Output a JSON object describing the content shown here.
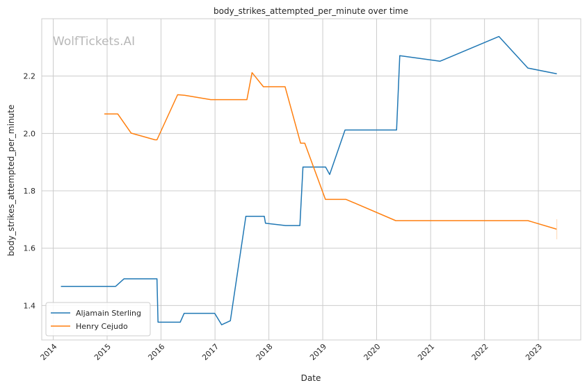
{
  "watermark": "WolfTickets.AI",
  "chart_data": {
    "type": "line",
    "title": "body_strikes_attempted_per_minute over time",
    "xlabel": "Date",
    "ylabel": "body_strikes_attempted_per_minute",
    "xlim": [
      "2013-10-15",
      "2023-10-15"
    ],
    "ylim": [
      1.28,
      2.4
    ],
    "x_ticks": [
      "2014",
      "2015",
      "2016",
      "2017",
      "2018",
      "2019",
      "2020",
      "2021",
      "2022",
      "2023"
    ],
    "y_ticks": [
      1.4,
      1.6,
      1.8,
      2.0,
      2.2
    ],
    "y_tick_labels": [
      "1.4",
      "1.6",
      "1.8",
      "2.0",
      "2.2"
    ],
    "grid": true,
    "legend_position": "lower-left",
    "series": [
      {
        "name": "Aljamain Sterling",
        "color": "#1f77b4",
        "points": [
          [
            "2014-02-22",
            1.467
          ],
          [
            "2015-02-28",
            1.467
          ],
          [
            "2015-04-25",
            1.493
          ],
          [
            "2015-12-05",
            1.493
          ],
          [
            "2015-12-12",
            1.342
          ],
          [
            "2016-05-10",
            1.342
          ],
          [
            "2016-06-06",
            1.373
          ],
          [
            "2016-12-30",
            1.373
          ],
          [
            "2017-02-15",
            1.333
          ],
          [
            "2017-04-15",
            1.347
          ],
          [
            "2017-07-29",
            1.711
          ],
          [
            "2017-12-01",
            1.711
          ],
          [
            "2017-12-09",
            1.687
          ],
          [
            "2018-04-25",
            1.679
          ],
          [
            "2018-07-30",
            1.679
          ],
          [
            "2018-08-20",
            1.883
          ],
          [
            "2019-01-20",
            1.883
          ],
          [
            "2019-02-17",
            1.857
          ],
          [
            "2019-06-01",
            2.012
          ],
          [
            "2020-05-15",
            2.012
          ],
          [
            "2020-06-06",
            2.271
          ],
          [
            "2021-03-06",
            2.252
          ],
          [
            "2022-04-09",
            2.338
          ],
          [
            "2022-10-22",
            2.228
          ],
          [
            "2023-05-06",
            2.208
          ]
        ]
      },
      {
        "name": "Henry Cejudo",
        "color": "#ff7f0e",
        "points": [
          [
            "2014-12-13",
            2.068
          ],
          [
            "2015-03-14",
            2.068
          ],
          [
            "2015-06-13",
            2.001
          ],
          [
            "2015-11-21",
            1.978
          ],
          [
            "2015-12-05",
            1.978
          ],
          [
            "2016-04-23",
            2.135
          ],
          [
            "2016-06-11",
            2.133
          ],
          [
            "2016-12-03",
            2.118
          ],
          [
            "2017-08-05",
            2.118
          ],
          [
            "2017-09-09",
            2.212
          ],
          [
            "2017-11-25",
            2.163
          ],
          [
            "2018-04-21",
            2.163
          ],
          [
            "2018-08-04",
            1.966
          ],
          [
            "2018-09-01",
            1.966
          ],
          [
            "2019-01-19",
            1.77
          ],
          [
            "2019-06-08",
            1.77
          ],
          [
            "2020-05-09",
            1.696
          ],
          [
            "2022-10-22",
            1.696
          ],
          [
            "2023-05-06",
            1.666
          ]
        ]
      }
    ]
  }
}
